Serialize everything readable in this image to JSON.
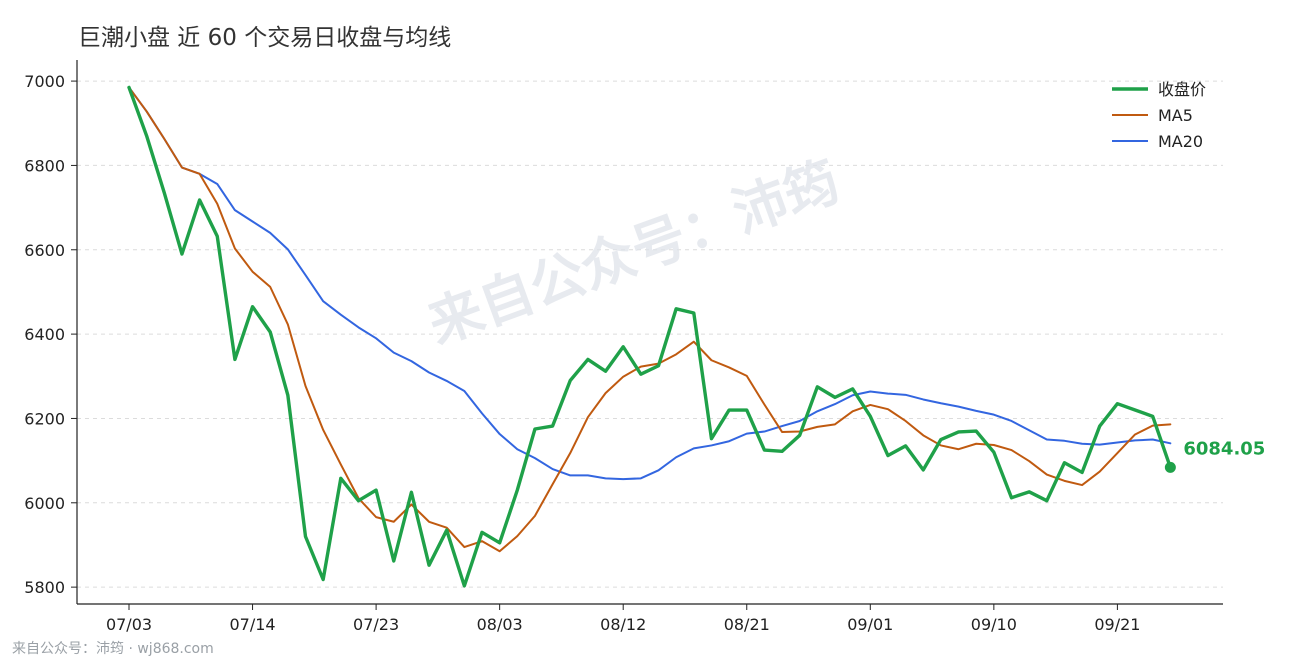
{
  "chart_data": {
    "type": "line",
    "title": "巨潮小盘 近 60 个交易日收盘与均线",
    "xlabel": "",
    "ylabel": "",
    "ylim": [
      5760,
      7050
    ],
    "yticks": [
      5800,
      6000,
      6200,
      6400,
      6600,
      6800,
      7000
    ],
    "x_ticks": [
      {
        "label": "07/03",
        "index": 0
      },
      {
        "label": "07/14",
        "index": 7
      },
      {
        "label": "07/23",
        "index": 14
      },
      {
        "label": "08/03",
        "index": 21
      },
      {
        "label": "08/12",
        "index": 28
      },
      {
        "label": "08/21",
        "index": 35
      },
      {
        "label": "09/01",
        "index": 42
      },
      {
        "label": "09/10",
        "index": 49
      },
      {
        "label": "09/21",
        "index": 56
      }
    ],
    "grid": "horizontal-dashed",
    "legend": "top-right",
    "series": [
      {
        "name": "收盘价",
        "color": "#1fa149",
        "width": 3.4,
        "values": [
          6985,
          6870,
          6735,
          6590,
          6718,
          6632,
          6340,
          6465,
          6405,
          6255,
          5920,
          5818,
          6058,
          6005,
          6030,
          5862,
          6025,
          5852,
          5935,
          5803,
          5930,
          5905,
          6030,
          6175,
          6182,
          6290,
          6340,
          6312,
          6370,
          6305,
          6325,
          6460,
          6450,
          6152,
          6220,
          6220,
          6125,
          6122,
          6160,
          6275,
          6250,
          6270,
          6205,
          6112,
          6135,
          6078,
          6150,
          6168,
          6170,
          6120,
          6012,
          6026,
          6005,
          6095,
          6072,
          6182,
          6235,
          6220,
          6205,
          6084.05
        ]
      },
      {
        "name": "MA5",
        "color": "#c05a10",
        "width": 2,
        "values": [
          6985,
          6928,
          6863,
          6795,
          6780,
          6709,
          6603,
          6548,
          6512,
          6423,
          6277,
          6173,
          6091,
          6011,
          5966,
          5955,
          5996,
          5955,
          5941,
          5895,
          5909,
          5885,
          5921,
          5969,
          6044,
          6118,
          6203,
          6260,
          6299,
          6323,
          6330,
          6352,
          6382,
          6338,
          6321,
          6301,
          6233,
          6168,
          6169,
          6180,
          6186,
          6217,
          6232,
          6222,
          6194,
          6160,
          6136,
          6127,
          6140,
          6137,
          6125,
          6099,
          6067,
          6052,
          6042,
          6074,
          6118,
          6162,
          6183,
          6186
        ]
      },
      {
        "name": "MA20",
        "color": "#3366e0",
        "width": 2,
        "values": [
          6985,
          6928,
          6863,
          6795,
          6780,
          6756,
          6694,
          6667,
          6640,
          6601,
          6540,
          6478,
          6446,
          6416,
          6390,
          6356,
          6336,
          6309,
          6289,
          6265,
          6212,
          6163,
          6127,
          6106,
          6080,
          6065,
          6065,
          6058,
          6056,
          6058,
          6077,
          6108,
          6129,
          6136,
          6146,
          6164,
          6169,
          6182,
          6194,
          6217,
          6234,
          6255,
          6264,
          6259,
          6256,
          6245,
          6236,
          6228,
          6218,
          6209,
          6194,
          6172,
          6150,
          6147,
          6140,
          6138,
          6143,
          6148,
          6150,
          6141
        ]
      }
    ],
    "end_label": "6084.05"
  },
  "watermark": "来自公众号：沛筠",
  "footer": "来自公众号：沛筠 · wj868.com"
}
